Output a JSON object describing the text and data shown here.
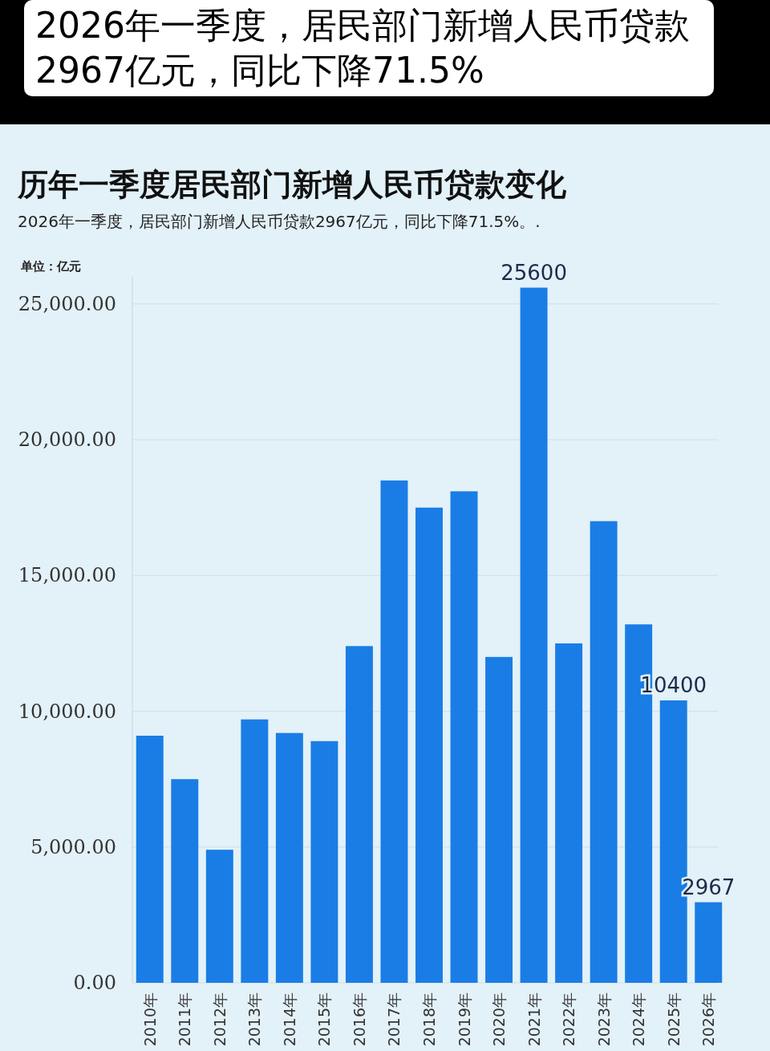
{
  "chart_data": {
    "type": "bar",
    "title": "2026年一季度，居民部门新增人民币贷款2967亿元，同比下降71.5%",
    "subtitle": "历年一季度居民部门新增人民币贷款变化",
    "annotations": [
      "2026年一季度，居民部门新增人民币贷款2967亿元，同比下降71.5%。."
    ],
    "ylabel": "单位：亿元",
    "categories": [
      "2010年",
      "2011年",
      "2012年",
      "2013年",
      "2014年",
      "2015年",
      "2016年",
      "2017年",
      "2018年",
      "2019年",
      "2020年",
      "2021年",
      "2022年",
      "2023年",
      "2024年",
      "2025年",
      "2026年"
    ],
    "values": [
      9100,
      7500,
      4900,
      9700,
      9200,
      8900,
      12400,
      18500,
      17500,
      18100,
      12000,
      25600,
      12500,
      17000,
      13200,
      10400,
      2967
    ],
    "value_labels": [
      null,
      null,
      null,
      null,
      null,
      null,
      null,
      null,
      null,
      null,
      null,
      "25600",
      null,
      null,
      null,
      "10400",
      "2967"
    ],
    "color": "#1a7de6",
    "ylim": [
      0,
      26000
    ],
    "yticks": [
      {
        "value": 0,
        "label": "0.00"
      },
      {
        "value": 5000,
        "label": "5,000.00"
      },
      {
        "value": 10000,
        "label": "10,000.00"
      },
      {
        "value": 15000,
        "label": "15,000.00"
      },
      {
        "value": 20000,
        "label": "20,000.00"
      },
      {
        "value": 25000,
        "label": "25,000.00"
      }
    ],
    "grid": "y"
  }
}
